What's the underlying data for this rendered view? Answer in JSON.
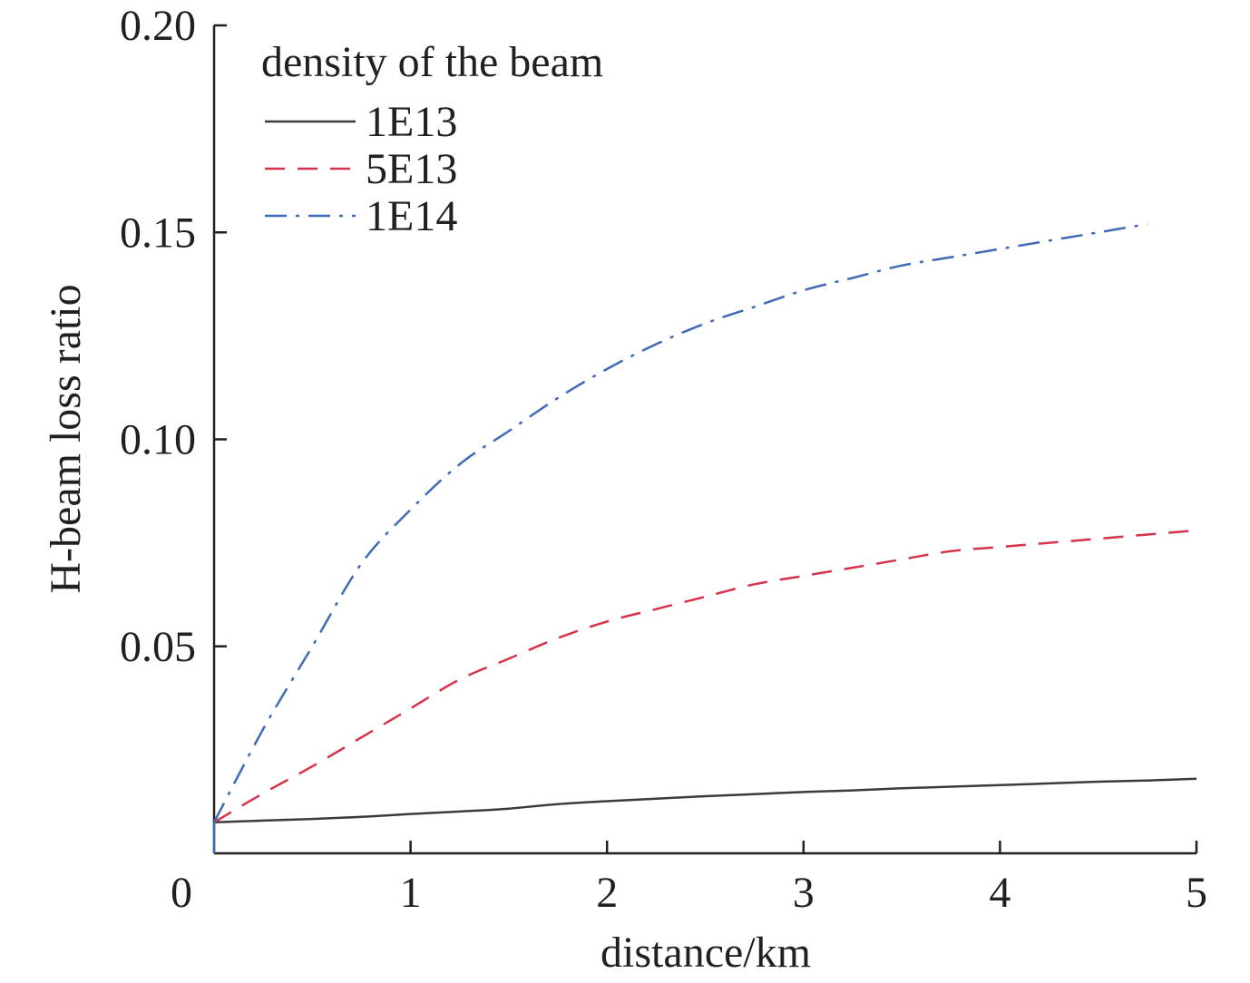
{
  "chart_data": {
    "type": "line",
    "title": "",
    "xlabel": "distance/km",
    "ylabel": "H-beam loss ratio",
    "xlim": [
      0,
      5
    ],
    "ylim": [
      0,
      0.2
    ],
    "x_ticks": [
      "0",
      "1",
      "2",
      "3",
      "4",
      "5"
    ],
    "y_ticks": [
      "0.05",
      "0.10",
      "0.15",
      "0.20"
    ],
    "grid": false,
    "legend": {
      "title": "density of the beam",
      "placement": "top-left"
    },
    "series": [
      {
        "name": "1E13",
        "color": "#3b3b3b",
        "dash": "solid",
        "x": [
          0,
          0.25,
          0.5,
          0.75,
          1.0,
          1.25,
          1.5,
          1.75,
          2.0,
          2.25,
          2.5,
          2.75,
          3.0,
          3.25,
          3.5,
          3.75,
          4.0,
          4.25,
          4.5,
          4.75,
          5.0
        ],
        "y": [
          0.0075,
          0.0079,
          0.0083,
          0.0088,
          0.0095,
          0.0101,
          0.0108,
          0.0119,
          0.0126,
          0.0132,
          0.0138,
          0.0143,
          0.0148,
          0.0152,
          0.0157,
          0.0161,
          0.0165,
          0.0169,
          0.0173,
          0.0176,
          0.018
        ]
      },
      {
        "name": "5E13",
        "color": "#d6334a",
        "dash": "dashed",
        "x": [
          0,
          0.25,
          0.5,
          0.75,
          1.0,
          1.25,
          1.5,
          1.75,
          2.0,
          2.25,
          2.5,
          2.75,
          3.0,
          3.25,
          3.5,
          3.75,
          4.0,
          4.25,
          4.5,
          4.75,
          5.0
        ],
        "y": [
          0.0075,
          0.0145,
          0.021,
          0.028,
          0.035,
          0.042,
          0.047,
          0.052,
          0.056,
          0.059,
          0.062,
          0.065,
          0.067,
          0.069,
          0.071,
          0.073,
          0.074,
          0.075,
          0.076,
          0.077,
          0.078
        ]
      },
      {
        "name": "1E14",
        "color": "#3f6bb5",
        "dash": "dashdot",
        "x": [
          0,
          0.25,
          0.5,
          0.75,
          1.0,
          1.25,
          1.5,
          1.75,
          2.0,
          2.25,
          2.5,
          2.75,
          3.0,
          3.25,
          3.5,
          3.75,
          4.0,
          4.25,
          4.5,
          4.75
        ],
        "y": [
          0.0075,
          0.03,
          0.05,
          0.07,
          0.083,
          0.094,
          0.102,
          0.11,
          0.117,
          0.123,
          0.128,
          0.132,
          0.136,
          0.139,
          0.142,
          0.144,
          0.146,
          0.148,
          0.15,
          0.152
        ]
      }
    ]
  }
}
